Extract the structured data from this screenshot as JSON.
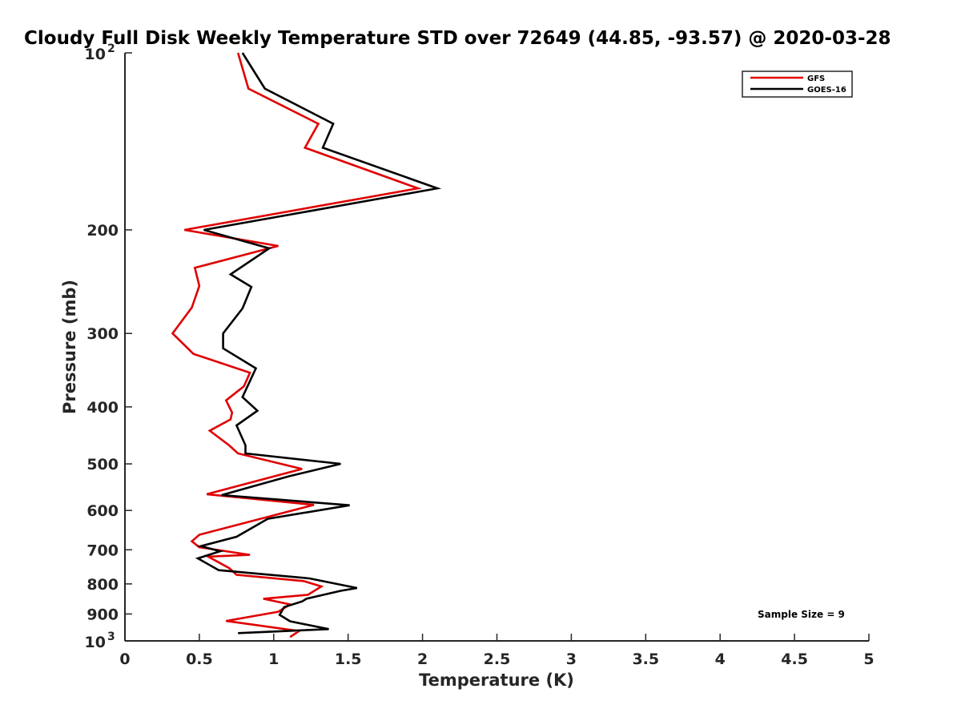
{
  "chart_data": {
    "type": "line",
    "title": "Cloudy Full Disk Weekly Temperature STD over 72649 (44.85, -93.57) @ 2020-03-28",
    "xlabel": "Temperature (K)",
    "ylabel": "Pressure (mb)",
    "xlim": [
      0,
      5
    ],
    "ylim": [
      1000,
      100
    ],
    "y_scale": "log",
    "y_reversed": true,
    "grid": false,
    "legend_position": "top-right",
    "x_ticks": [
      "0",
      "0.5",
      "1",
      "1.5",
      "2",
      "2.5",
      "3",
      "3.5",
      "4",
      "4.5",
      "5"
    ],
    "y_ticks": [
      {
        "value": 100,
        "base": "10",
        "exp": "2"
      },
      {
        "value": 200,
        "label": "200"
      },
      {
        "value": 300,
        "label": "300"
      },
      {
        "value": 400,
        "label": "400"
      },
      {
        "value": 500,
        "label": "500"
      },
      {
        "value": 600,
        "label": "600"
      },
      {
        "value": 700,
        "label": "700"
      },
      {
        "value": 800,
        "label": "800"
      },
      {
        "value": 900,
        "label": "900"
      },
      {
        "value": 1000,
        "base": "10",
        "exp": "3"
      }
    ],
    "annotation": "Sample Size = 9",
    "series": [
      {
        "name": "GFS",
        "color": "#e00000",
        "points": [
          [
            0.76,
            100
          ],
          [
            0.83,
            115
          ],
          [
            1.3,
            132
          ],
          [
            1.21,
            145
          ],
          [
            1.97,
            170
          ],
          [
            0.4,
            200
          ],
          [
            1.03,
            213
          ],
          [
            0.47,
            232
          ],
          [
            0.5,
            249
          ],
          [
            0.45,
            271
          ],
          [
            0.32,
            300
          ],
          [
            0.46,
            325
          ],
          [
            0.84,
            350
          ],
          [
            0.8,
            369
          ],
          [
            0.68,
            390
          ],
          [
            0.72,
            409
          ],
          [
            0.71,
            420
          ],
          [
            0.57,
            439
          ],
          [
            0.7,
            465
          ],
          [
            0.76,
            480
          ],
          [
            1.19,
            510
          ],
          [
            0.55,
            563
          ],
          [
            1.27,
            587
          ],
          [
            0.5,
            660
          ],
          [
            0.45,
            677
          ],
          [
            0.5,
            693
          ],
          [
            0.84,
            714
          ],
          [
            0.56,
            719
          ],
          [
            0.7,
            752
          ],
          [
            0.75,
            772
          ],
          [
            1.2,
            791
          ],
          [
            1.32,
            808
          ],
          [
            1.23,
            835
          ],
          [
            0.93,
            848
          ],
          [
            1.11,
            867
          ],
          [
            1.03,
            892
          ],
          [
            0.68,
            925
          ],
          [
            1.17,
            962
          ],
          [
            1.11,
            985
          ]
        ]
      },
      {
        "name": "GOES-16",
        "color": "#000000",
        "points": [
          [
            0.79,
            100
          ],
          [
            0.94,
            115
          ],
          [
            1.4,
            132
          ],
          [
            1.33,
            145
          ],
          [
            2.1,
            170
          ],
          [
            0.53,
            200
          ],
          [
            0.97,
            215
          ],
          [
            0.71,
            238
          ],
          [
            0.85,
            250
          ],
          [
            0.79,
            272
          ],
          [
            0.66,
            300
          ],
          [
            0.66,
            318
          ],
          [
            0.88,
            344
          ],
          [
            0.79,
            385
          ],
          [
            0.89,
            406
          ],
          [
            0.75,
            430
          ],
          [
            0.81,
            465
          ],
          [
            0.81,
            480
          ],
          [
            1.45,
            500
          ],
          [
            1.1,
            525
          ],
          [
            0.65,
            565
          ],
          [
            1.51,
            588
          ],
          [
            0.96,
            620
          ],
          [
            0.75,
            665
          ],
          [
            0.51,
            690
          ],
          [
            0.64,
            704
          ],
          [
            0.49,
            724
          ],
          [
            0.63,
            758
          ],
          [
            1.24,
            783
          ],
          [
            1.56,
            813
          ],
          [
            1.45,
            822
          ],
          [
            1.22,
            848
          ],
          [
            1.19,
            857
          ],
          [
            1.07,
            876
          ],
          [
            1.04,
            903
          ],
          [
            1.11,
            926
          ],
          [
            1.37,
            955
          ],
          [
            0.76,
            970
          ]
        ]
      }
    ]
  }
}
